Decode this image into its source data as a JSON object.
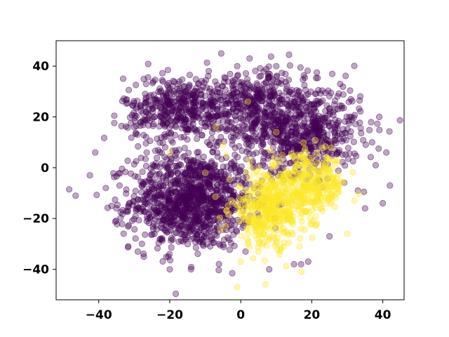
{
  "chart_data": {
    "type": "scatter",
    "title": "",
    "xlabel": "",
    "ylabel": "",
    "xlim": [
      -52,
      46
    ],
    "ylim": [
      -52,
      50
    ],
    "x_ticks": [
      -40,
      -20,
      0,
      20,
      40
    ],
    "y_ticks": [
      -40,
      -20,
      0,
      20,
      40
    ],
    "x_tick_labels": [
      "−40",
      "−20",
      "0",
      "20",
      "40"
    ],
    "y_tick_labels": [
      "−40",
      "−20",
      "0",
      "20",
      "40"
    ],
    "grid": false,
    "legend": "none",
    "marker_alpha": 0.35,
    "series": [
      {
        "color": "#440154",
        "clusters": [
          {
            "center": [
              -14,
              -13
            ],
            "spread": [
              8.5,
              9.5
            ],
            "count": 1100
          },
          {
            "center": [
              16,
              15
            ],
            "spread": [
              9,
              8.5
            ],
            "count": 700
          },
          {
            "center": [
              -17,
              23
            ],
            "spread": [
              8,
              6.5
            ],
            "count": 450
          },
          {
            "center": [
              3,
              27
            ],
            "spread": [
              8,
              6
            ],
            "count": 280
          }
        ],
        "points": [
          [
            -46.5,
            -11
          ],
          [
            -42.5,
            -3
          ],
          [
            -41,
            6
          ],
          [
            -5.5,
            45
          ],
          [
            2.5,
            43
          ],
          [
            -9,
            38
          ],
          [
            -1,
            40
          ],
          [
            28,
            33
          ],
          [
            38,
            1
          ],
          [
            41,
            6
          ],
          [
            42,
            -7
          ],
          [
            40,
            -14
          ],
          [
            35,
            -16
          ],
          [
            25,
            -27
          ],
          [
            15,
            -38
          ],
          [
            17,
            -38
          ],
          [
            19,
            -37
          ],
          [
            8,
            -40
          ],
          [
            -20,
            -40
          ],
          [
            -14,
            -40
          ],
          [
            -38,
            -8
          ],
          [
            -30,
            16
          ],
          [
            -33,
            -26
          ],
          [
            -35,
            -16
          ],
          [
            33,
            -9
          ],
          [
            37,
            10
          ],
          [
            39,
            20
          ],
          [
            10,
            40
          ]
        ]
      },
      {
        "color": "#fde725",
        "clusters": [
          {
            "center": [
              8,
              -17
            ],
            "spread": [
              5.5,
              7
            ],
            "count": 380
          },
          {
            "center": [
              19,
              -7
            ],
            "spread": [
              5.5,
              6
            ],
            "count": 320
          }
        ],
        "points": [
          [
            -1,
            -47
          ],
          [
            7,
            -46
          ],
          [
            0,
            -37
          ],
          [
            5,
            -33
          ],
          [
            11,
            -33
          ],
          [
            30,
            -26
          ],
          [
            -7,
            16
          ],
          [
            -5,
            9
          ],
          [
            -4,
            5
          ],
          [
            -20,
            6
          ],
          [
            -10,
            -2
          ],
          [
            2,
            26
          ],
          [
            10,
            14
          ],
          [
            25,
            3
          ],
          [
            32,
            -13
          ]
        ]
      }
    ]
  }
}
